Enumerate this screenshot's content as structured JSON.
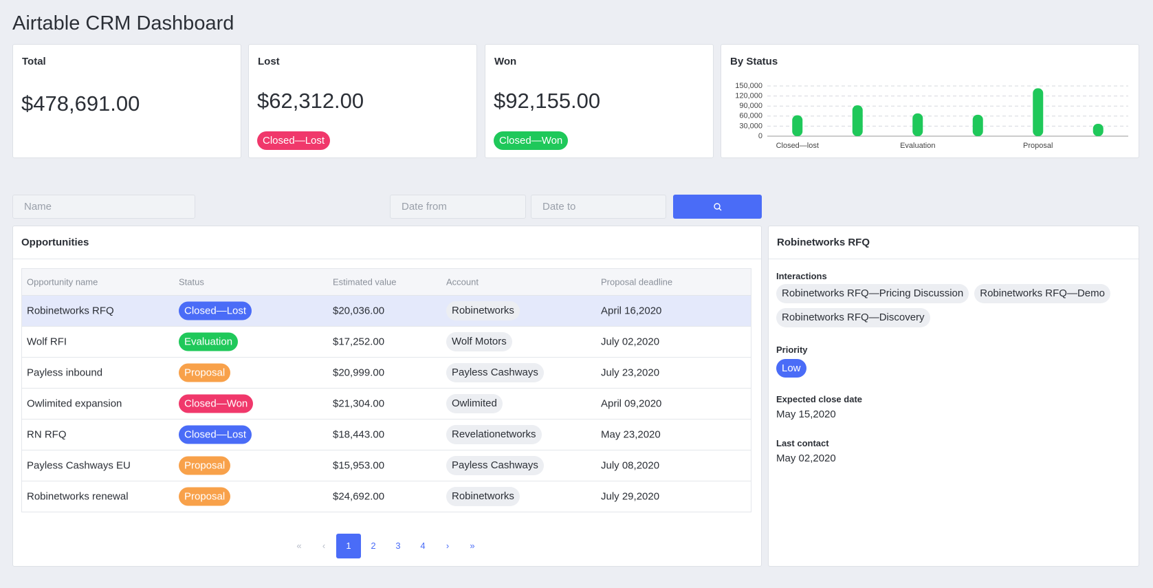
{
  "header": {
    "title": "Airtable CRM Dashboard"
  },
  "cards": [
    {
      "label": "Total",
      "value": "$478,691.00"
    },
    {
      "label": "Lost",
      "value": "$62,312.00",
      "badge": "Closed—Lost",
      "badge_color": "#f0386b"
    },
    {
      "label": "Won",
      "value": "$92,155.00",
      "badge": "Closed—Won",
      "badge_color": "#1fc85a"
    }
  ],
  "chart_data": {
    "type": "bar",
    "title": "By Status",
    "categories": [
      "Closed—lost",
      null,
      "Evaluation",
      null,
      "Proposal",
      null
    ],
    "values": [
      62312,
      92155,
      68000,
      64000,
      143000,
      37000
    ],
    "color": "#1fc85a",
    "ylim": [
      0,
      150000
    ],
    "yticks": [
      0,
      {
        "value": 30000,
        "label": "30,000"
      },
      {
        "value": 60000,
        "label": "60,000"
      },
      {
        "value": 90000,
        "label": "90,000"
      },
      {
        "value": 120000,
        "label": "120,000"
      },
      {
        "value": 150000,
        "label": "150,000"
      }
    ],
    "grid": true
  },
  "filters": {
    "name": "Name",
    "date_from": "Date from",
    "date_to": "Date to"
  },
  "opportunities": {
    "title": "Opportunities",
    "columns": [
      "Opportunity name",
      "Status",
      "Estimated value",
      "Account",
      "Proposal deadline"
    ],
    "rows": [
      {
        "name": "Robinetworks RFQ",
        "status": "Closed—Lost",
        "status_color": "#4a6cf7",
        "value": "$20,036.00",
        "account": "Robinetworks",
        "deadline": "April 16,2020"
      },
      {
        "name": "Wolf RFI",
        "status": "Evaluation",
        "status_color": "#1fc85a",
        "value": "$17,252.00",
        "account": "Wolf Motors",
        "deadline": "July 02,2020"
      },
      {
        "name": "Payless inbound",
        "status": "Proposal",
        "status_color": "#f8a14a",
        "value": "$20,999.00",
        "account": "Payless Cashways",
        "deadline": "July 23,2020"
      },
      {
        "name": "Owlimited expansion",
        "status": "Closed—Won",
        "status_color": "#f0386b",
        "value": "$21,304.00",
        "account": "Owlimited",
        "deadline": "April 09,2020"
      },
      {
        "name": "RN RFQ",
        "status": "Closed—Lost",
        "status_color": "#4a6cf7",
        "value": "$18,443.00",
        "account": "Revelationetworks",
        "deadline": "May 23,2020"
      },
      {
        "name": "Payless Cashways EU",
        "status": "Proposal",
        "status_color": "#f8a14a",
        "value": "$15,953.00",
        "account": "Payless Cashways",
        "deadline": "July 08,2020"
      },
      {
        "name": "Robinetworks renewal",
        "status": "Proposal",
        "status_color": "#f8a14a",
        "value": "$24,692.00",
        "account": "Robinetworks",
        "deadline": "July 29,2020"
      }
    ]
  },
  "pagination": [
    "«",
    "‹",
    "1",
    "2",
    "3",
    "4",
    "›",
    "»"
  ],
  "detail": {
    "title": "Robinetworks RFQ",
    "interactions_label": "Interactions",
    "interactions": [
      "Robinetworks RFQ—Pricing Discussion",
      "Robinetworks RFQ—Demo",
      "Robinetworks RFQ—Discovery"
    ],
    "priority_label": "Priority",
    "priority": "Low",
    "close_label": "Expected close date",
    "close": "May 15,2020",
    "contact_label": "Last contact",
    "contact": "May 02,2020"
  }
}
